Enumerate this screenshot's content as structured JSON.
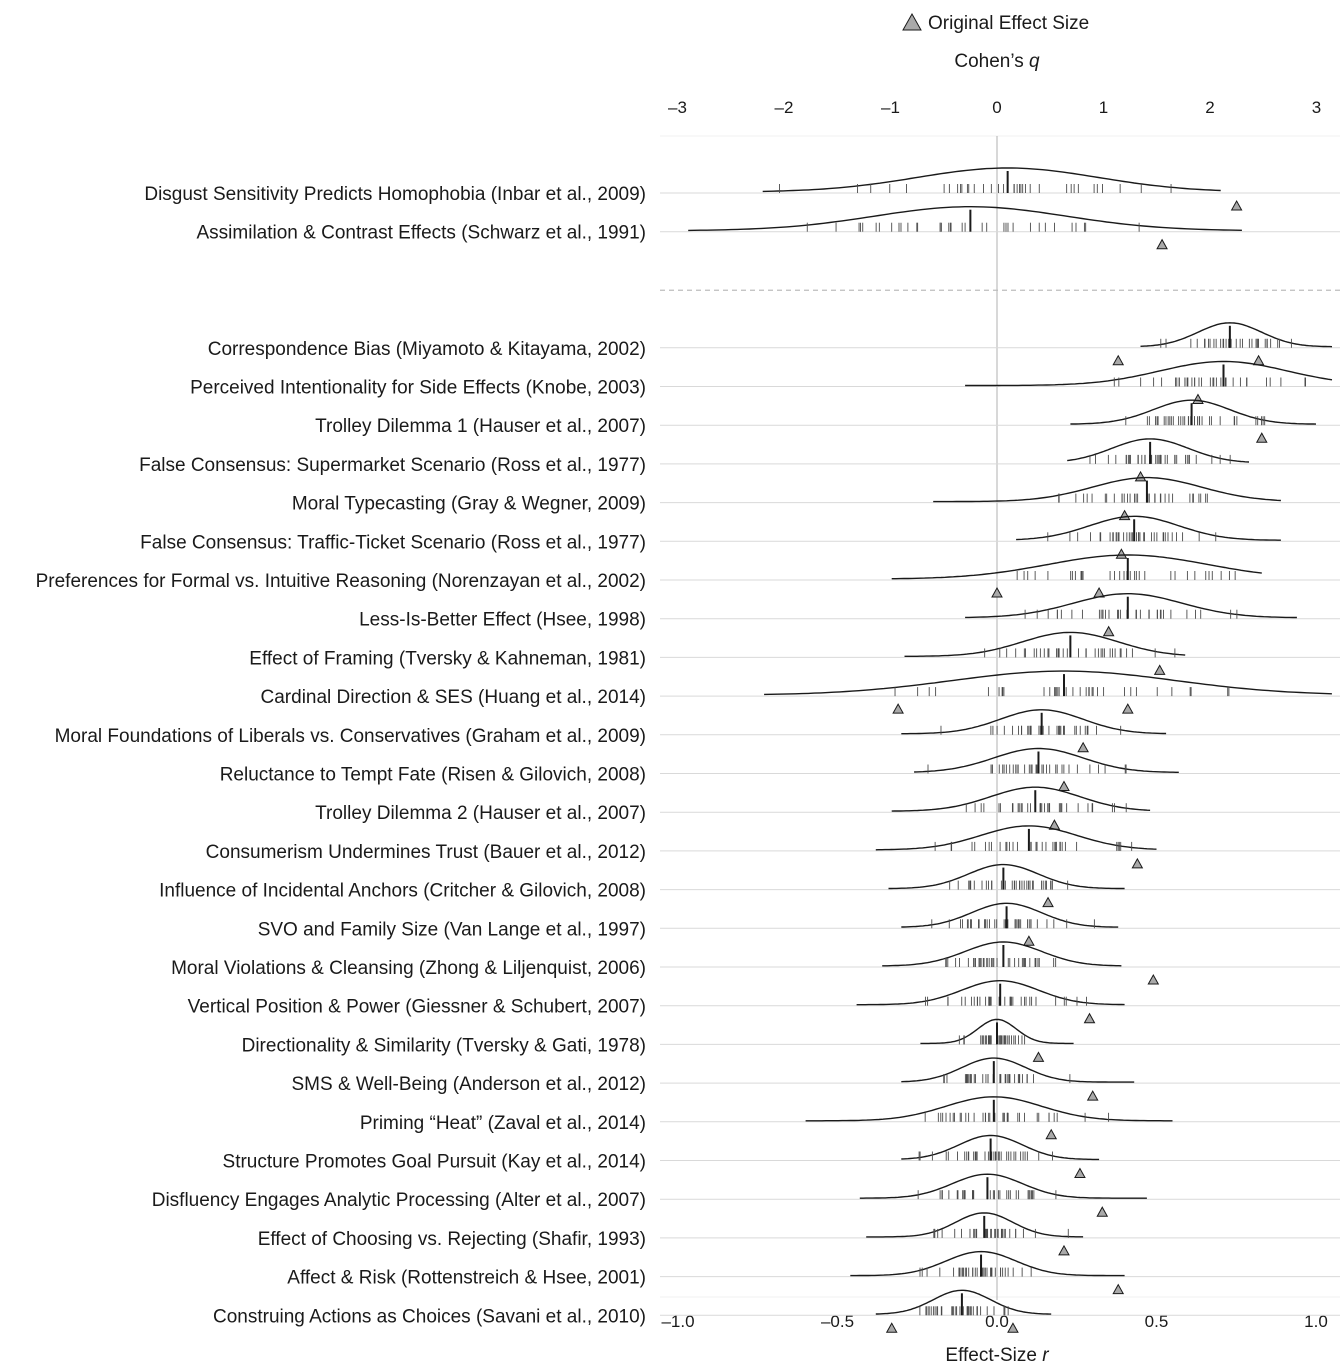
{
  "chart_data": {
    "type": "ridgeline",
    "top_axis": {
      "title": "Cohen’s",
      "title_italic": "q",
      "ticks": [
        "–3",
        "–2",
        "–1",
        "0",
        "1",
        "2",
        "3"
      ],
      "range": [
        -3,
        3.2
      ]
    },
    "bottom_axis": {
      "title": "Effect-Size",
      "title_italic": "r",
      "ticks": [
        "–1.0",
        "–0.5",
        "0.0",
        "0.5",
        "1.0"
      ],
      "range": [
        -1.0,
        1.05
      ]
    },
    "legend": {
      "label": "Original Effect Size",
      "marker": "gray-triangle",
      "placement": "top-center"
    },
    "colors": {
      "marker_fill": "#a9a9a9",
      "grid": "#d9d9d9",
      "zero_line": "#bdbdbd",
      "line": "#1a1a1a"
    },
    "groups": [
      {
        "axis": "q",
        "studies": [
          {
            "label": "Disgust Sensitivity Predicts Homophobia (Inbar et al., 2009)",
            "replication_median": 0.1,
            "replication_spread": 0.85,
            "replication_range": [
              -2.2,
              2.1
            ],
            "original": [
              2.25
            ]
          },
          {
            "label": "Assimilation & Contrast Effects (Schwarz et al., 1991)",
            "replication_median": -0.25,
            "replication_spread": 0.9,
            "replication_range": [
              -2.9,
              2.3
            ],
            "original": [
              1.55
            ]
          }
        ]
      },
      {
        "axis": "r",
        "studies": [
          {
            "label": "Correspondence Bias (Miyamoto & Kitayama, 2002)",
            "replication_median": 0.73,
            "replication_spread": 0.1,
            "replication_range": [
              0.45,
              1.05
            ],
            "original": [
              0.82,
              0.38
            ]
          },
          {
            "label": "Perceived Intentionality for Side Effects (Knobe, 2003)",
            "replication_median": 0.71,
            "replication_spread": 0.2,
            "replication_range": [
              -0.1,
              1.05
            ],
            "original": [
              0.63
            ]
          },
          {
            "label": "Trolley Dilemma 1 (Hauser et al., 2007)",
            "replication_median": 0.61,
            "replication_spread": 0.12,
            "replication_range": [
              0.23,
              1.0
            ],
            "original": [
              0.83
            ]
          },
          {
            "label": "False Consensus: Supermarket Scenario (Ross et al., 1977)",
            "replication_median": 0.48,
            "replication_spread": 0.12,
            "replication_range": [
              0.22,
              0.79
            ],
            "original": [
              0.45
            ]
          },
          {
            "label": "Moral Typecasting (Gray & Wegner, 2009)",
            "replication_median": 0.47,
            "replication_spread": 0.17,
            "replication_range": [
              -0.2,
              0.89
            ],
            "original": [
              0.4
            ]
          },
          {
            "label": "False Consensus: Traffic-Ticket Scenario (Ross et al., 1977)",
            "replication_median": 0.43,
            "replication_spread": 0.14,
            "replication_range": [
              0.06,
              0.89
            ],
            "original": [
              0.39
            ]
          },
          {
            "label": "Preferences for Formal vs. Intuitive Reasoning (Norenzayan et al., 2002)",
            "replication_median": 0.41,
            "replication_spread": 0.25,
            "replication_range": [
              -0.33,
              0.83
            ],
            "original": [
              0.0,
              0.32
            ]
          },
          {
            "label": "Less-Is-Better Effect (Hsee, 1998)",
            "replication_median": 0.41,
            "replication_spread": 0.17,
            "replication_range": [
              -0.1,
              0.94
            ],
            "original": [
              0.35
            ]
          },
          {
            "label": "Effect of Framing (Tversky & Kahneman, 1981)",
            "replication_median": 0.23,
            "replication_spread": 0.15,
            "replication_range": [
              -0.29,
              0.59
            ],
            "original": [
              0.51
            ]
          },
          {
            "label": "Cardinal Direction & SES (Huang et al., 2014)",
            "replication_median": 0.21,
            "replication_spread": 0.35,
            "replication_range": [
              -0.73,
              1.05
            ],
            "original": [
              -0.31,
              0.41
            ]
          },
          {
            "label": "Moral Foundations of Liberals vs. Conservatives (Graham et al., 2009)",
            "replication_median": 0.14,
            "replication_spread": 0.13,
            "replication_range": [
              -0.3,
              0.53
            ],
            "original": [
              0.27
            ]
          },
          {
            "label": "Reluctance to Tempt Fate (Risen & Gilovich, 2008)",
            "replication_median": 0.13,
            "replication_spread": 0.14,
            "replication_range": [
              -0.26,
              0.57
            ],
            "original": [
              0.21
            ]
          },
          {
            "label": "Trolley Dilemma 2 (Hauser et al., 2007)",
            "replication_median": 0.12,
            "replication_spread": 0.14,
            "replication_range": [
              -0.33,
              0.48
            ],
            "original": [
              0.18
            ]
          },
          {
            "label": "Consumerism Undermines Trust (Bauer et al., 2012)",
            "replication_median": 0.1,
            "replication_spread": 0.15,
            "replication_range": [
              -0.38,
              0.5
            ],
            "original": [
              0.44
            ]
          },
          {
            "label": "Influence of Incidental Anchors (Critcher & Gilovich, 2008)",
            "replication_median": 0.02,
            "replication_spread": 0.11,
            "replication_range": [
              -0.34,
              0.4
            ],
            "original": [
              0.16
            ]
          },
          {
            "label": "SVO and Family Size (Van Lange et al., 1997)",
            "replication_median": 0.03,
            "replication_spread": 0.11,
            "replication_range": [
              -0.3,
              0.38
            ],
            "original": [
              0.1
            ]
          },
          {
            "label": "Moral Violations & Cleansing (Zhong & Liljenquist, 2006)",
            "replication_median": 0.02,
            "replication_spread": 0.12,
            "replication_range": [
              -0.36,
              0.39
            ],
            "original": [
              0.49
            ]
          },
          {
            "label": "Vertical Position & Power (Giessner & Schubert, 2007)",
            "replication_median": 0.01,
            "replication_spread": 0.12,
            "replication_range": [
              -0.44,
              0.4
            ],
            "original": [
              0.29
            ]
          },
          {
            "label": "Directionality & Similarity (Tversky & Gati, 1978)",
            "replication_median": 0.0,
            "replication_spread": 0.06,
            "replication_range": [
              -0.24,
              0.24
            ],
            "original": [
              0.13
            ]
          },
          {
            "label": "SMS & Well-Being (Anderson et al., 2012)",
            "replication_median": -0.01,
            "replication_spread": 0.1,
            "replication_range": [
              -0.3,
              0.43
            ],
            "original": [
              0.3
            ]
          },
          {
            "label": "Priming “Heat” (Zaval et al., 2014)",
            "replication_median": -0.01,
            "replication_spread": 0.15,
            "replication_range": [
              -0.6,
              0.55
            ],
            "original": [
              0.17
            ]
          },
          {
            "label": "Structure Promotes Goal Pursuit (Kay et al., 2014)",
            "replication_median": -0.02,
            "replication_spread": 0.1,
            "replication_range": [
              -0.3,
              0.32
            ],
            "original": [
              0.26
            ]
          },
          {
            "label": "Disfluency Engages Analytic Processing (Alter et al., 2007)",
            "replication_median": -0.03,
            "replication_spread": 0.11,
            "replication_range": [
              -0.43,
              0.47
            ],
            "original": [
              0.33
            ]
          },
          {
            "label": "Effect of Choosing vs. Rejecting (Shafir, 1993)",
            "replication_median": -0.04,
            "replication_spread": 0.09,
            "replication_range": [
              -0.41,
              0.27
            ],
            "original": [
              0.21
            ]
          },
          {
            "label": "Affect & Risk (Rottenstreich & Hsee, 2001)",
            "replication_median": -0.05,
            "replication_spread": 0.11,
            "replication_range": [
              -0.46,
              0.4
            ],
            "original": [
              0.38
            ]
          },
          {
            "label": "Construing Actions as Choices (Savani et al., 2010)",
            "replication_median": -0.11,
            "replication_spread": 0.09,
            "replication_range": [
              -0.38,
              0.17
            ],
            "original": [
              -0.33,
              0.05
            ]
          }
        ]
      }
    ]
  }
}
